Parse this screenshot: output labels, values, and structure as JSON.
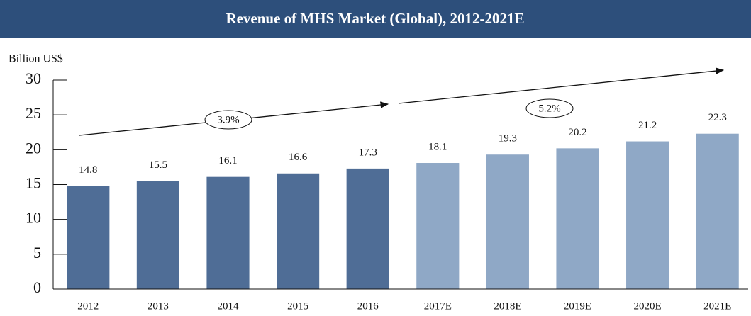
{
  "chart_data": {
    "type": "bar",
    "title": "Revenue of MHS Market (Global), 2012-2021E",
    "y_label": "Billion US$",
    "categories": [
      "2012",
      "2013",
      "2014",
      "2015",
      "2016",
      "2017E",
      "2018E",
      "2019E",
      "2020E",
      "2021E"
    ],
    "values": [
      14.8,
      15.5,
      16.1,
      16.6,
      17.3,
      18.1,
      19.3,
      20.2,
      21.2,
      22.3
    ],
    "colors": [
      "#4f6d96",
      "#4f6d96",
      "#4f6d96",
      "#4f6d96",
      "#4f6d96",
      "#8fa8c6",
      "#8fa8c6",
      "#8fa8c6",
      "#8fa8c6",
      "#8fa8c6"
    ],
    "annotations": [
      "3.9%",
      "5.2%"
    ],
    "ylim": [
      0,
      30
    ],
    "yticks": [
      0,
      5,
      10,
      15,
      20,
      25,
      30
    ]
  }
}
